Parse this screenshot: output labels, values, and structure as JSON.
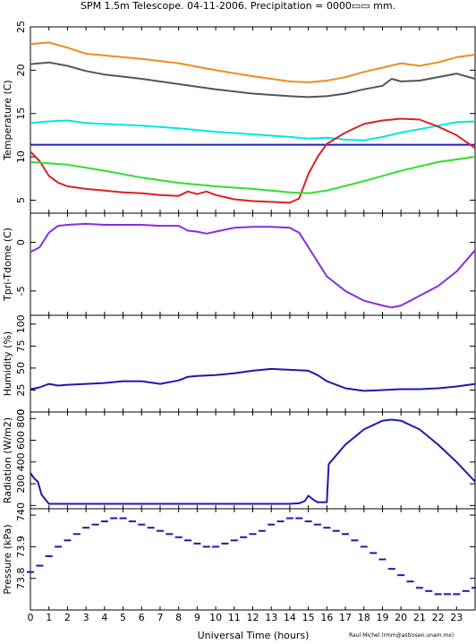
{
  "title": "SPM 1.5m Telescope. 04-11-2006. Precipitation = 0000▭▭ mm.",
  "xlabel": "Universal Time (hours)",
  "credit": "Raul Michel (rmm@astrosen.unam.mx)",
  "chart_data": [
    {
      "type": "line",
      "ylabel": "Temperature (C)",
      "xlim": [
        0,
        24
      ],
      "ylim": [
        3.5,
        25
      ],
      "yticks": [
        5,
        10,
        15,
        20,
        25
      ],
      "series": [
        {
          "color": "#f08c1e",
          "x": [
            0,
            1,
            2,
            3,
            4,
            6,
            8,
            10,
            12,
            14,
            15,
            16,
            17,
            18,
            19,
            20,
            21,
            22,
            23,
            24
          ],
          "y": [
            23.0,
            23.2,
            22.6,
            21.9,
            21.7,
            21.3,
            20.8,
            20.0,
            19.3,
            18.7,
            18.6,
            18.8,
            19.2,
            19.8,
            20.3,
            20.8,
            20.5,
            20.9,
            21.5,
            21.8
          ]
        },
        {
          "color": "#555555",
          "x": [
            0,
            1,
            2,
            3,
            4,
            6,
            8,
            10,
            12,
            14,
            15,
            16,
            17,
            18,
            19,
            19.5,
            20,
            21,
            22,
            23,
            24
          ],
          "y": [
            20.7,
            20.9,
            20.5,
            19.9,
            19.5,
            19.0,
            18.4,
            17.8,
            17.3,
            17.0,
            16.9,
            17.0,
            17.3,
            17.8,
            18.2,
            19.0,
            18.7,
            18.8,
            19.2,
            19.6,
            19.0
          ]
        },
        {
          "color": "#00e6e6",
          "x": [
            0,
            1,
            2,
            3,
            4,
            6,
            8,
            10,
            12,
            14,
            15,
            16,
            17,
            18,
            19,
            20,
            21,
            22,
            23,
            24
          ],
          "y": [
            13.9,
            14.1,
            14.2,
            13.9,
            13.8,
            13.6,
            13.3,
            12.9,
            12.6,
            12.3,
            12.1,
            12.2,
            12.0,
            11.9,
            12.3,
            12.8,
            13.2,
            13.6,
            14.0,
            14.1
          ]
        },
        {
          "color": "#2020c0",
          "x": [
            0,
            24
          ],
          "y": [
            11.4,
            11.4
          ]
        },
        {
          "color": "#dd2020",
          "x": [
            0,
            0.5,
            1,
            1.5,
            2,
            3,
            4,
            5,
            6,
            7,
            8,
            8.5,
            9,
            9.5,
            10,
            11,
            12,
            13,
            14,
            14.5,
            15,
            15.5,
            16,
            17,
            18,
            19,
            20,
            21,
            22,
            23,
            24
          ],
          "y": [
            10.6,
            9.5,
            7.8,
            7.0,
            6.6,
            6.3,
            6.1,
            5.9,
            5.8,
            5.6,
            5.5,
            6.0,
            5.7,
            6.0,
            5.6,
            5.1,
            4.9,
            4.8,
            4.7,
            5.2,
            8.0,
            10.0,
            11.5,
            12.8,
            13.8,
            14.2,
            14.4,
            14.3,
            13.5,
            12.5,
            11.0
          ]
        },
        {
          "color": "#33dd33",
          "x": [
            0,
            2,
            4,
            6,
            8,
            10,
            12,
            14,
            15,
            16,
            18,
            20,
            22,
            24
          ],
          "y": [
            9.4,
            9.1,
            8.4,
            7.6,
            7.0,
            6.6,
            6.3,
            5.9,
            5.8,
            6.1,
            7.2,
            8.4,
            9.4,
            10.0
          ]
        }
      ]
    },
    {
      "type": "line",
      "ylabel": "Tpri-Tdome (C)",
      "xlim": [
        0,
        24
      ],
      "ylim": [
        -7.5,
        3
      ],
      "yticks": [
        -5,
        0
      ],
      "series": [
        {
          "color": "#8a2be2",
          "x": [
            0,
            0.5,
            1,
            1.5,
            2,
            3,
            4,
            5,
            6,
            7,
            8,
            8.5,
            9,
            9.5,
            10,
            11,
            12,
            13,
            14,
            14.5,
            15,
            15.5,
            16,
            17,
            18,
            19,
            19.5,
            20,
            21,
            22,
            23,
            24
          ],
          "y": [
            -1.0,
            -0.5,
            1.0,
            1.7,
            1.8,
            1.9,
            1.8,
            1.8,
            1.8,
            1.7,
            1.7,
            1.2,
            1.1,
            0.9,
            1.1,
            1.5,
            1.6,
            1.6,
            1.5,
            1.0,
            -0.5,
            -2.0,
            -3.5,
            -5.0,
            -6.0,
            -6.5,
            -6.7,
            -6.5,
            -5.5,
            -4.5,
            -3.0,
            -0.8
          ]
        }
      ]
    },
    {
      "type": "line",
      "ylabel": "Humidity (%)",
      "xlim": [
        0,
        24
      ],
      "ylim": [
        0,
        110
      ],
      "yticks": [
        0,
        25,
        50,
        75,
        100
      ],
      "series": [
        {
          "color": "#1a1ab0",
          "x": [
            0,
            0.5,
            1,
            1.5,
            2,
            3,
            4,
            5,
            6,
            7,
            8,
            8.5,
            9,
            10,
            11,
            12,
            13,
            14,
            15,
            15.5,
            16,
            17,
            18,
            19,
            20,
            21,
            22,
            23,
            24
          ],
          "y": [
            26,
            28,
            32,
            30,
            31,
            32,
            33,
            35,
            35,
            32,
            36,
            40,
            41,
            42,
            44,
            47,
            49,
            48,
            47,
            42,
            35,
            27,
            24,
            25,
            26,
            26,
            27,
            29,
            32
          ]
        }
      ]
    },
    {
      "type": "line",
      "ylabel": "Radiation (W/m2)",
      "xlim": [
        0,
        24
      ],
      "ylim": [
        -30,
        860
      ],
      "yticks": [
        0,
        200,
        400,
        600,
        800
      ],
      "series": [
        {
          "color": "#1a1ab0",
          "x": [
            0,
            0.2,
            0.4,
            0.6,
            1,
            2,
            4,
            8,
            12,
            14,
            14.5,
            14.8,
            15,
            15.3,
            15.5,
            16,
            16.1,
            17,
            18,
            19,
            19.5,
            20,
            21,
            22,
            23,
            24
          ],
          "y": [
            300,
            250,
            220,
            100,
            15,
            15,
            15,
            15,
            15,
            15,
            20,
            40,
            90,
            50,
            30,
            30,
            380,
            560,
            700,
            780,
            790,
            780,
            700,
            560,
            400,
            220
          ]
        }
      ]
    },
    {
      "type": "scatter",
      "ylabel": "Pressure (kPa)",
      "xlim": [
        0,
        24
      ],
      "ylim": [
        73.7,
        74.02
      ],
      "yticks": [
        73.8,
        73.9,
        74
      ],
      "series": [
        {
          "color": "#1a1ab0",
          "x": [
            0,
            0.5,
            1,
            1.5,
            2,
            2.5,
            3,
            3.5,
            4,
            4.5,
            5,
            5.5,
            6,
            6.5,
            7,
            7.5,
            8,
            8.5,
            9,
            9.5,
            10,
            10.5,
            11,
            11.5,
            12,
            12.5,
            13,
            13.5,
            14,
            14.5,
            15,
            15.5,
            16,
            16.5,
            17,
            17.5,
            18,
            18.5,
            19,
            19.5,
            20,
            20.5,
            21,
            21.5,
            22,
            22.5,
            23,
            23.5,
            24
          ],
          "y": [
            73.82,
            73.84,
            73.87,
            73.9,
            73.92,
            73.94,
            73.96,
            73.97,
            73.98,
            73.99,
            73.99,
            73.98,
            73.97,
            73.96,
            73.95,
            73.94,
            73.93,
            73.92,
            73.91,
            73.9,
            73.9,
            73.91,
            73.92,
            73.93,
            73.94,
            73.95,
            73.97,
            73.98,
            73.99,
            73.99,
            73.98,
            73.97,
            73.96,
            73.95,
            73.94,
            73.92,
            73.9,
            73.88,
            73.86,
            73.83,
            73.81,
            73.79,
            73.77,
            73.76,
            73.75,
            73.75,
            73.75,
            73.76,
            73.77
          ]
        }
      ]
    }
  ]
}
